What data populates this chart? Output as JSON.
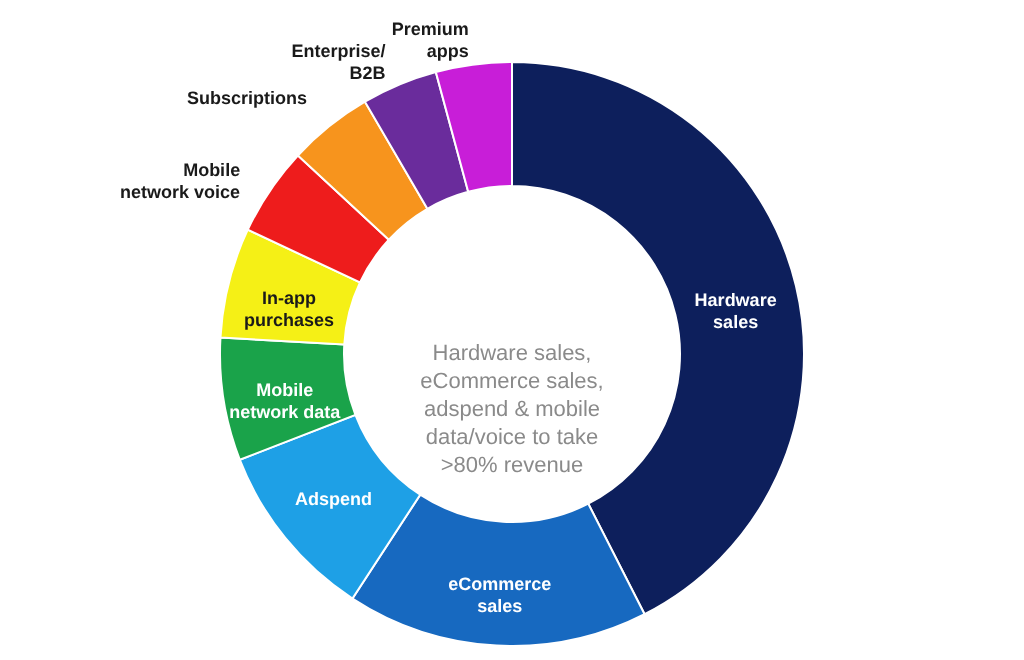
{
  "chart_data": {
    "type": "donut",
    "categories": [
      "Hardware\nsales",
      "eCommerce\nsales",
      "Adspend",
      "Mobile\nnetwork data",
      "In-app\npurchases",
      "Mobile\nnetwork voice",
      "Subscriptions",
      "Enterprise/\nB2B",
      "Premium\napps"
    ],
    "values": [
      42.5,
      16.7,
      9.9,
      6.8,
      6.1,
      4.9,
      4.7,
      4.2,
      4.2
    ],
    "colors": [
      "#0d1f5c",
      "#1769c0",
      "#1ea0e6",
      "#1aa34a",
      "#f5f016",
      "#ee1c1c",
      "#f7941d",
      "#6a2c9c",
      "#c81ed8"
    ],
    "annotations": [
      "Hardware sales,\neCommerce sales,\nadspend & mobile\ndata/voice to take\n>80% revenue"
    ]
  }
}
